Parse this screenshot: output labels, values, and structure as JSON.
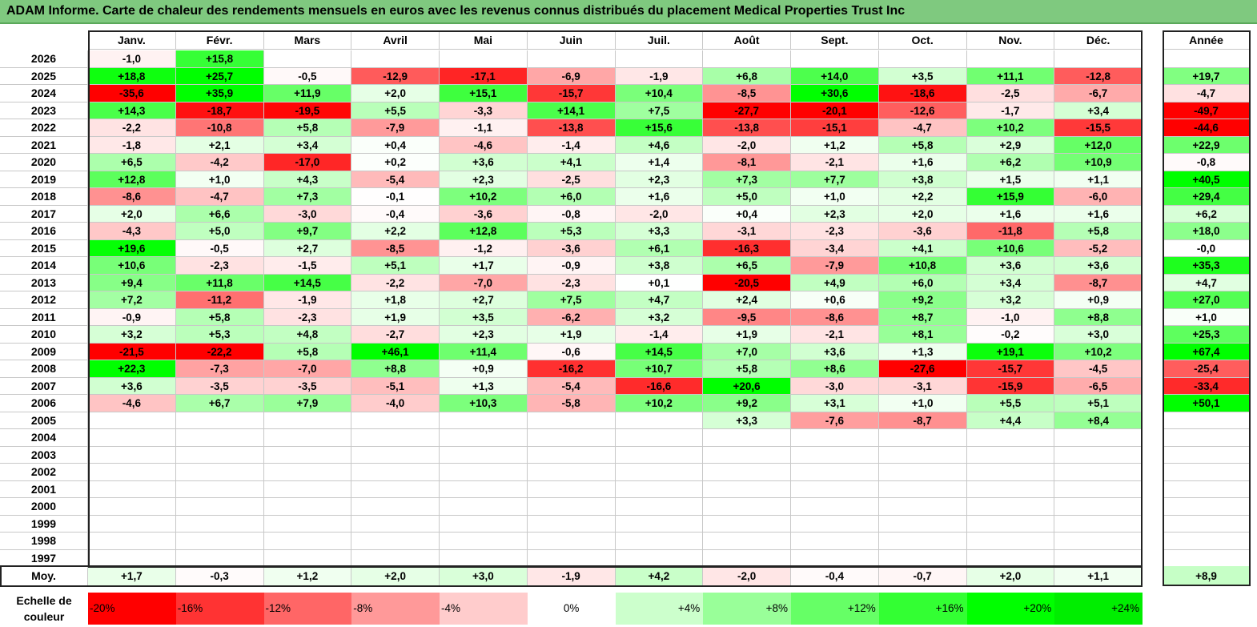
{
  "title": "ADAM Informe. Carte de chaleur des rendements mensuels en euros avec les revenus connus distribués du placement Medical Properties Trust Inc",
  "chart_data": {
    "type": "heatmap",
    "months": [
      "Janv.",
      "Févr.",
      "Mars",
      "Avril",
      "Mai",
      "Juin",
      "Juil.",
      "Août",
      "Sept.",
      "Oct.",
      "Nov.",
      "Déc."
    ],
    "year_header": "Année",
    "rows": [
      {
        "year": "2026",
        "values": [
          "-1,0",
          "+15,8",
          "",
          "",
          "",
          "",
          "",
          "",
          "",
          "",
          "",
          ""
        ],
        "annual": ""
      },
      {
        "year": "2025",
        "values": [
          "+18,8",
          "+25,7",
          "-0,5",
          "-12,9",
          "-17,1",
          "-6,9",
          "-1,9",
          "+6,8",
          "+14,0",
          "+3,5",
          "+11,1",
          "-12,8"
        ],
        "annual": "+19,7"
      },
      {
        "year": "2024",
        "values": [
          "-35,6",
          "+35,9",
          "+11,9",
          "+2,0",
          "+15,1",
          "-15,7",
          "+10,4",
          "-8,5",
          "+30,6",
          "-18,6",
          "-2,5",
          "-6,7"
        ],
        "annual": "-4,7"
      },
      {
        "year": "2023",
        "values": [
          "+14,3",
          "-18,7",
          "-19,5",
          "+5,5",
          "-3,3",
          "+14,1",
          "+7,5",
          "-27,7",
          "-20,1",
          "-12,6",
          "-1,7",
          "+3,4"
        ],
        "annual": "-49,7"
      },
      {
        "year": "2022",
        "values": [
          "-2,2",
          "-10,8",
          "+5,8",
          "-7,9",
          "-1,1",
          "-13,8",
          "+15,6",
          "-13,8",
          "-15,1",
          "-4,7",
          "+10,2",
          "-15,5"
        ],
        "annual": "-44,6"
      },
      {
        "year": "2021",
        "values": [
          "-1,8",
          "+2,1",
          "+3,4",
          "+0,4",
          "-4,6",
          "-1,4",
          "+4,6",
          "-2,0",
          "+1,2",
          "+5,8",
          "+2,9",
          "+12,0"
        ],
        "annual": "+22,9"
      },
      {
        "year": "2020",
        "values": [
          "+6,5",
          "-4,2",
          "-17,0",
          "+0,2",
          "+3,6",
          "+4,1",
          "+1,4",
          "-8,1",
          "-2,1",
          "+1,6",
          "+6,2",
          "+10,9"
        ],
        "annual": "-0,8"
      },
      {
        "year": "2019",
        "values": [
          "+12,8",
          "+1,0",
          "+4,3",
          "-5,4",
          "+2,3",
          "-2,5",
          "+2,3",
          "+7,3",
          "+7,7",
          "+3,8",
          "+1,5",
          "+1,1"
        ],
        "annual": "+40,5"
      },
      {
        "year": "2018",
        "values": [
          "-8,6",
          "-4,7",
          "+7,3",
          "-0,1",
          "+10,2",
          "+6,0",
          "+1,6",
          "+5,0",
          "+1,0",
          "+2,2",
          "+15,9",
          "-6,0"
        ],
        "annual": "+29,4"
      },
      {
        "year": "2017",
        "values": [
          "+2,0",
          "+6,6",
          "-3,0",
          "-0,4",
          "-3,6",
          "-0,8",
          "-2,0",
          "+0,4",
          "+2,3",
          "+2,0",
          "+1,6",
          "+1,6"
        ],
        "annual": "+6,2"
      },
      {
        "year": "2016",
        "values": [
          "-4,3",
          "+5,0",
          "+9,7",
          "+2,2",
          "+12,8",
          "+5,3",
          "+3,3",
          "-3,1",
          "-2,3",
          "-3,6",
          "-11,8",
          "+5,8"
        ],
        "annual": "+18,0"
      },
      {
        "year": "2015",
        "values": [
          "+19,6",
          "-0,5",
          "+2,7",
          "-8,5",
          "-1,2",
          "-3,6",
          "+6,1",
          "-16,3",
          "-3,4",
          "+4,1",
          "+10,6",
          "-5,2"
        ],
        "annual": "-0,0"
      },
      {
        "year": "2014",
        "values": [
          "+10,6",
          "-2,3",
          "-1,5",
          "+5,1",
          "+1,7",
          "-0,9",
          "+3,8",
          "+6,5",
          "-7,9",
          "+10,8",
          "+3,6",
          "+3,6"
        ],
        "annual": "+35,3"
      },
      {
        "year": "2013",
        "values": [
          "+9,4",
          "+11,8",
          "+14,5",
          "-2,2",
          "-7,0",
          "-2,3",
          "+0,1",
          "-20,5",
          "+4,9",
          "+6,0",
          "+3,4",
          "-8,7"
        ],
        "annual": "+4,7"
      },
      {
        "year": "2012",
        "values": [
          "+7,2",
          "-11,2",
          "-1,9",
          "+1,8",
          "+2,7",
          "+7,5",
          "+4,7",
          "+2,4",
          "+0,6",
          "+9,2",
          "+3,2",
          "+0,9"
        ],
        "annual": "+27,0"
      },
      {
        "year": "2011",
        "values": [
          "-0,9",
          "+5,8",
          "-2,3",
          "+1,9",
          "+3,5",
          "-6,2",
          "+3,2",
          "-9,5",
          "-8,6",
          "+8,7",
          "-1,0",
          "+8,8"
        ],
        "annual": "+1,0"
      },
      {
        "year": "2010",
        "values": [
          "+3,2",
          "+5,3",
          "+4,8",
          "-2,7",
          "+2,3",
          "+1,9",
          "-1,4",
          "+1,9",
          "-2,1",
          "+8,1",
          "-0,2",
          "+3,0"
        ],
        "annual": "+25,3"
      },
      {
        "year": "2009",
        "values": [
          "-21,5",
          "-22,2",
          "+5,8",
          "+46,1",
          "+11,4",
          "-0,6",
          "+14,5",
          "+7,0",
          "+3,6",
          "+1,3",
          "+19,1",
          "+10,2"
        ],
        "annual": "+67,4"
      },
      {
        "year": "2008",
        "values": [
          "+22,3",
          "-7,3",
          "-7,0",
          "+8,8",
          "+0,9",
          "-16,2",
          "+10,7",
          "+5,8",
          "+8,6",
          "-27,6",
          "-15,7",
          "-4,5"
        ],
        "annual": "-25,4"
      },
      {
        "year": "2007",
        "values": [
          "+3,6",
          "-3,5",
          "-3,5",
          "-5,1",
          "+1,3",
          "-5,4",
          "-16,6",
          "+20,6",
          "-3,0",
          "-3,1",
          "-15,9",
          "-6,5"
        ],
        "annual": "-33,4"
      },
      {
        "year": "2006",
        "values": [
          "-4,6",
          "+6,7",
          "+7,9",
          "-4,0",
          "+10,3",
          "-5,8",
          "+10,2",
          "+9,2",
          "+3,1",
          "+1,0",
          "+5,5",
          "+5,1"
        ],
        "annual": "+50,1"
      },
      {
        "year": "2005",
        "values": [
          "",
          "",
          "",
          "",
          "",
          "",
          "",
          "+3,3",
          "-7,6",
          "-8,7",
          "+4,4",
          "+8,4"
        ],
        "annual": ""
      },
      {
        "year": "2004",
        "values": [
          "",
          "",
          "",
          "",
          "",
          "",
          "",
          "",
          "",
          "",
          "",
          ""
        ],
        "annual": ""
      },
      {
        "year": "2003",
        "values": [
          "",
          "",
          "",
          "",
          "",
          "",
          "",
          "",
          "",
          "",
          "",
          ""
        ],
        "annual": ""
      },
      {
        "year": "2002",
        "values": [
          "",
          "",
          "",
          "",
          "",
          "",
          "",
          "",
          "",
          "",
          "",
          ""
        ],
        "annual": ""
      },
      {
        "year": "2001",
        "values": [
          "",
          "",
          "",
          "",
          "",
          "",
          "",
          "",
          "",
          "",
          "",
          ""
        ],
        "annual": ""
      },
      {
        "year": "2000",
        "values": [
          "",
          "",
          "",
          "",
          "",
          "",
          "",
          "",
          "",
          "",
          "",
          ""
        ],
        "annual": ""
      },
      {
        "year": "1999",
        "values": [
          "",
          "",
          "",
          "",
          "",
          "",
          "",
          "",
          "",
          "",
          "",
          ""
        ],
        "annual": ""
      },
      {
        "year": "1998",
        "values": [
          "",
          "",
          "",
          "",
          "",
          "",
          "",
          "",
          "",
          "",
          "",
          ""
        ],
        "annual": ""
      },
      {
        "year": "1997",
        "values": [
          "",
          "",
          "",
          "",
          "",
          "",
          "",
          "",
          "",
          "",
          "",
          ""
        ],
        "annual": ""
      }
    ],
    "average": {
      "label": "Moy.",
      "values": [
        "+1,7",
        "-0,3",
        "+1,2",
        "+2,0",
        "+3,0",
        "-1,9",
        "+4,2",
        "-2,0",
        "-0,4",
        "-0,7",
        "+2,0",
        "+1,1"
      ],
      "annual": "+8,9"
    },
    "scale": {
      "label": "Echelle de couleur",
      "steps": [
        "-20%",
        "-16%",
        "-12%",
        "-8%",
        "-4%",
        "0%",
        "+4%",
        "+8%",
        "+12%",
        "+16%",
        "+20%",
        "+24%"
      ],
      "step_values": [
        -20,
        -16,
        -12,
        -8,
        -4,
        0,
        4,
        8,
        12,
        16,
        20,
        24
      ],
      "colors": [
        "#ff0000",
        "#ff3333",
        "#ff6666",
        "#ff9999",
        "#ffcccc",
        "#ffffff",
        "#ccffcc",
        "#99ff99",
        "#66ff66",
        "#33ff33",
        "#00ff00",
        "#00ee00"
      ]
    }
  }
}
